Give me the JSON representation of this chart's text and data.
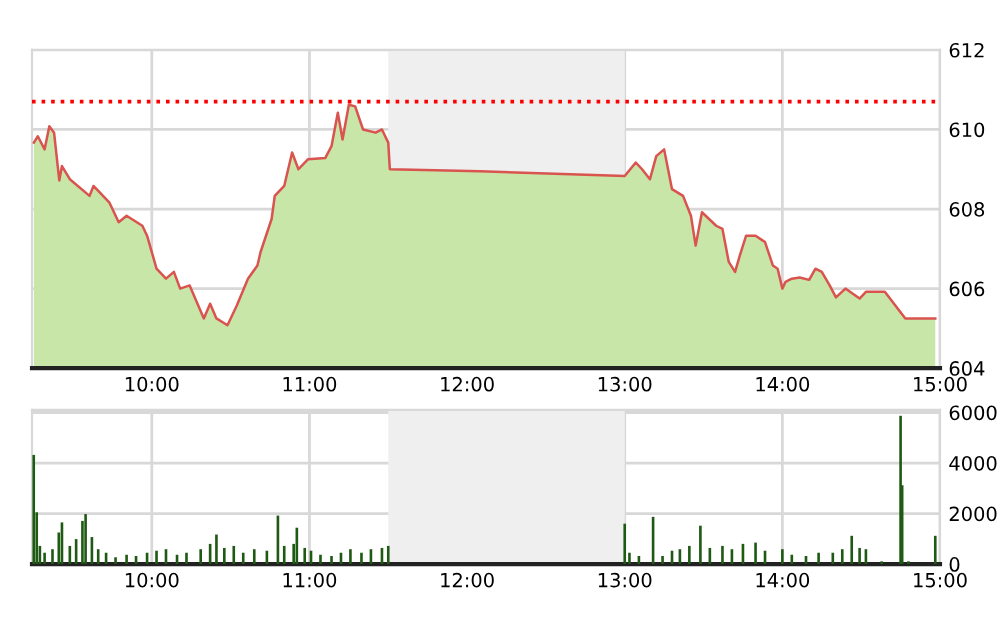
{
  "chart_data": [
    {
      "type": "area",
      "xlim": [
        9.24,
        15
      ],
      "xticks": [
        {
          "value": 10,
          "label": "10:00"
        },
        {
          "value": 11,
          "label": "11:00"
        },
        {
          "value": 12,
          "label": "12:00"
        },
        {
          "value": 13,
          "label": "13:00"
        },
        {
          "value": 14,
          "label": "14:00"
        },
        {
          "value": 15,
          "label": "15:00"
        }
      ],
      "ylim": [
        604,
        612
      ],
      "yticks": [
        604,
        606,
        608,
        610,
        612
      ],
      "grid": true,
      "series": [
        {
          "color": "#c8e6a8",
          "x": [
            9.252,
            9.277,
            9.32,
            9.35,
            9.38,
            9.413,
            9.43,
            9.48,
            9.605,
            9.63,
            9.73,
            9.79,
            9.84,
            9.94,
            9.97,
            10.03,
            10.09,
            10.14,
            10.18,
            10.24,
            10.33,
            10.37,
            10.41,
            10.48,
            10.54,
            10.61,
            10.67,
            10.69,
            10.76,
            10.78,
            10.84,
            10.89,
            10.93,
            10.99,
            11.1,
            11.14,
            11.18,
            11.21,
            11.25,
            11.29,
            11.34,
            11.42,
            11.46,
            11.5,
            11.51,
            12.08,
            13.0,
            13.07,
            13.11,
            13.16,
            13.2,
            13.25,
            13.3,
            13.37,
            13.42,
            13.45,
            13.49,
            13.58,
            13.62,
            13.66,
            13.7,
            13.73,
            13.77,
            13.83,
            13.89,
            13.94,
            13.97,
            14.0,
            14.02,
            14.06,
            14.11,
            14.17,
            14.21,
            14.25,
            14.3,
            14.34,
            14.4,
            14.49,
            14.53,
            14.65,
            14.78,
            14.97
          ],
          "values": [
            609.67,
            609.83,
            609.5,
            610.08,
            609.92,
            608.72,
            609.08,
            608.75,
            608.33,
            608.58,
            608.17,
            607.67,
            607.83,
            607.58,
            607.33,
            606.5,
            606.25,
            606.42,
            606.0,
            606.08,
            605.25,
            605.62,
            605.25,
            605.08,
            605.58,
            606.25,
            606.58,
            606.92,
            607.75,
            608.33,
            608.58,
            609.42,
            609.0,
            609.25,
            609.28,
            609.58,
            610.42,
            609.75,
            610.62,
            610.58,
            610.0,
            609.92,
            610.0,
            609.67,
            609.0,
            608.95,
            608.83,
            609.17,
            609.0,
            608.75,
            609.33,
            609.5,
            608.5,
            608.33,
            607.83,
            607.08,
            607.92,
            607.58,
            607.5,
            606.67,
            606.42,
            606.83,
            607.33,
            607.33,
            607.17,
            606.58,
            606.5,
            606.0,
            606.17,
            606.25,
            606.28,
            606.22,
            606.5,
            606.42,
            606.08,
            605.78,
            606.0,
            605.75,
            605.92,
            605.92,
            605.25,
            605.25
          ]
        },
        {
          "type": "line",
          "color": "#d9534f",
          "x": [
            9.252,
            9.277,
            9.32,
            9.35,
            9.38,
            9.413,
            9.43,
            9.48,
            9.605,
            9.63,
            9.73,
            9.79,
            9.84,
            9.94,
            9.97,
            10.03,
            10.09,
            10.14,
            10.18,
            10.24,
            10.33,
            10.37,
            10.41,
            10.48,
            10.54,
            10.61,
            10.67,
            10.69,
            10.76,
            10.78,
            10.84,
            10.89,
            10.93,
            10.99,
            11.1,
            11.14,
            11.18,
            11.21,
            11.25,
            11.29,
            11.34,
            11.42,
            11.46,
            11.5,
            11.51,
            12.08,
            13.0,
            13.07,
            13.11,
            13.16,
            13.2,
            13.25,
            13.3,
            13.37,
            13.42,
            13.45,
            13.49,
            13.58,
            13.62,
            13.66,
            13.7,
            13.73,
            13.77,
            13.83,
            13.89,
            13.94,
            13.97,
            14.0,
            14.02,
            14.06,
            14.11,
            14.17,
            14.21,
            14.25,
            14.3,
            14.34,
            14.4,
            14.49,
            14.53,
            14.65,
            14.78,
            14.97
          ],
          "values": [
            609.67,
            609.83,
            609.5,
            610.08,
            609.92,
            608.72,
            609.08,
            608.75,
            608.33,
            608.58,
            608.17,
            607.67,
            607.83,
            607.58,
            607.33,
            606.5,
            606.25,
            606.42,
            606.0,
            606.08,
            605.25,
            605.62,
            605.25,
            605.08,
            605.58,
            606.25,
            606.58,
            606.92,
            607.75,
            608.33,
            608.58,
            609.42,
            609.0,
            609.25,
            609.28,
            609.58,
            610.42,
            609.75,
            610.62,
            610.58,
            610.0,
            609.92,
            610.0,
            609.67,
            609.0,
            608.95,
            608.83,
            609.17,
            609.0,
            608.75,
            609.33,
            609.5,
            608.5,
            608.33,
            607.83,
            607.08,
            607.92,
            607.58,
            607.5,
            606.67,
            606.42,
            606.83,
            607.33,
            607.33,
            607.17,
            606.58,
            606.5,
            606.0,
            606.17,
            606.25,
            606.28,
            606.22,
            606.5,
            606.42,
            606.08,
            605.78,
            606.0,
            605.75,
            605.92,
            605.92,
            605.25,
            605.25
          ]
        }
      ],
      "ref_lines": [
        {
          "axis": "y",
          "value": 610.7,
          "color": "#ff0000",
          "line_style": "dotted"
        }
      ],
      "bands": [
        {
          "axis": "x",
          "from": 11.5,
          "to": 13.0,
          "color": "#efefef"
        }
      ]
    },
    {
      "type": "bar",
      "xlim": [
        9.24,
        15
      ],
      "xticks": [
        {
          "value": 10,
          "label": "10:00"
        },
        {
          "value": 11,
          "label": "11:00"
        },
        {
          "value": 12,
          "label": "12:00"
        },
        {
          "value": 13,
          "label": "13:00"
        },
        {
          "value": 14,
          "label": "14:00"
        },
        {
          "value": 15,
          "label": "15:00"
        }
      ],
      "ylim": [
        0,
        6100
      ],
      "yticks": [
        0,
        2000,
        4000,
        6000
      ],
      "grid": true,
      "series": [
        {
          "color": "#1f5a14",
          "x": [
            9.251,
            9.27,
            9.29,
            9.32,
            9.37,
            9.41,
            9.43,
            9.48,
            9.52,
            9.56,
            9.58,
            9.62,
            9.66,
            9.71,
            9.77,
            9.84,
            9.9,
            9.97,
            10.03,
            10.09,
            10.16,
            10.22,
            10.31,
            10.37,
            10.41,
            10.46,
            10.52,
            10.58,
            10.65,
            10.73,
            10.8,
            10.84,
            10.9,
            10.92,
            10.97,
            11.01,
            11.07,
            11.14,
            11.2,
            11.26,
            11.33,
            11.39,
            11.46,
            11.5,
            13.0,
            13.03,
            13.09,
            13.18,
            13.24,
            13.3,
            13.35,
            13.41,
            13.48,
            13.54,
            13.62,
            13.68,
            13.75,
            13.83,
            13.89,
            14.0,
            14.06,
            14.15,
            14.23,
            14.32,
            14.38,
            14.44,
            14.49,
            14.53,
            14.63,
            14.75,
            14.76,
            14.8,
            14.97
          ],
          "values": [
            4320,
            2050,
            720,
            450,
            590,
            1250,
            1650,
            720,
            990,
            1710,
            1980,
            1070,
            590,
            450,
            270,
            370,
            320,
            450,
            530,
            590,
            370,
            450,
            590,
            800,
            1170,
            640,
            720,
            450,
            590,
            530,
            1920,
            720,
            800,
            1440,
            640,
            530,
            370,
            320,
            450,
            590,
            450,
            590,
            640,
            720,
            1600,
            450,
            320,
            1870,
            320,
            530,
            590,
            720,
            1520,
            640,
            720,
            590,
            800,
            850,
            530,
            590,
            370,
            320,
            450,
            450,
            590,
            1120,
            640,
            590,
            110,
            5870,
            3120,
            110,
            1120
          ]
        }
      ],
      "bands": [
        {
          "axis": "x",
          "from": 11.5,
          "to": 13.0,
          "color": "#efefef"
        }
      ]
    }
  ]
}
